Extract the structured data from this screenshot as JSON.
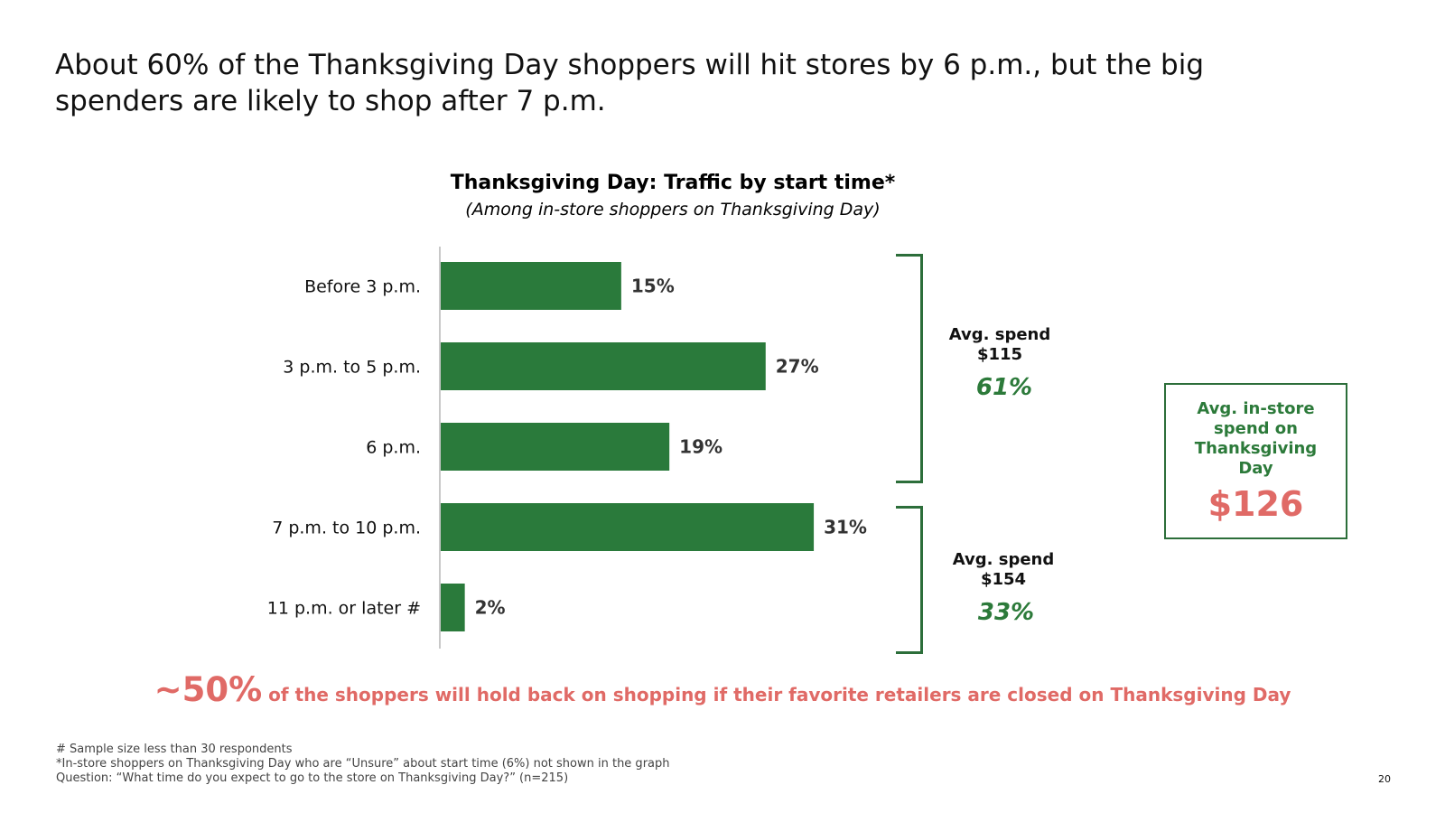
{
  "headline": "About 60% of the Thanksgiving Day shoppers will hit stores by 6 p.m., but the big spenders are likely to shop after 7 p.m.",
  "chart_data": {
    "type": "bar",
    "orientation": "horizontal",
    "title": "Thanksgiving Day: Traffic by start time*",
    "subtitle": "(Among in-store shoppers on Thanksgiving Day)",
    "categories": [
      "Before 3 p.m.",
      "3 p.m. to 5 p.m.",
      "6 p.m.",
      "7 p.m. to 10 p.m.",
      "11 p.m. or later #"
    ],
    "values": [
      15,
      27,
      19,
      31,
      2
    ],
    "value_labels": [
      "15%",
      "27%",
      "19%",
      "31%",
      "2%"
    ],
    "xlim": [
      0,
      40
    ],
    "grid": false,
    "bar_color": "#2a7a3b"
  },
  "groups": [
    {
      "label_line1": "Avg. spend",
      "label_line2": "$115",
      "percent": "61%"
    },
    {
      "label_line1": "Avg. spend",
      "label_line2": "$154",
      "percent": "33%"
    }
  ],
  "spend_box": {
    "label": "Avg. in-store spend on Thanksgiving Day",
    "value": "$126"
  },
  "callout": {
    "big": "~50%",
    "text": " of the shoppers will hold back on shopping if their favorite retailers are closed on Thanksgiving Day"
  },
  "footnotes": {
    "line1": "# Sample size less than 30 respondents",
    "line2": "*In-store shoppers on Thanksgiving Day who are “Unsure” about start time (6%) not shown in the graph",
    "line3": "Question: “What time do you expect to go to the store on Thanksgiving Day?” (n=215)"
  },
  "page_number": "20",
  "colors": {
    "accent_green": "#2c7a3a",
    "accent_red": "#e06a66"
  }
}
